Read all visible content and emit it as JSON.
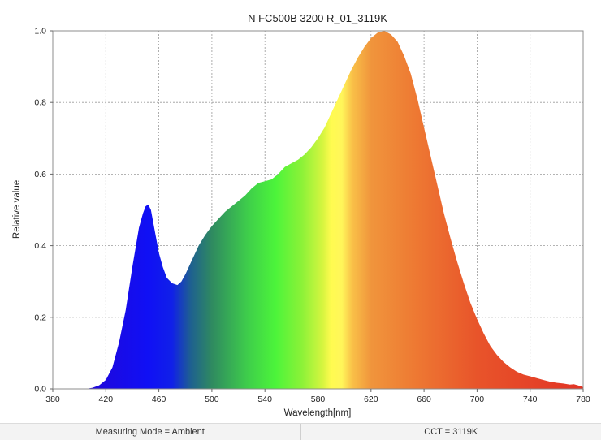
{
  "chart_data": {
    "type": "area",
    "title": "N FC500B 3200 R_01_3119K",
    "xlabel": "Wavelength[nm]",
    "ylabel": "Relative value",
    "xlim": [
      380,
      780
    ],
    "ylim": [
      0,
      1.0
    ],
    "x_ticks": [
      380,
      420,
      460,
      500,
      540,
      580,
      620,
      660,
      700,
      740,
      780
    ],
    "x_tick_labels": [
      "380",
      "420",
      "460",
      "500",
      "540",
      "580",
      "620",
      "660",
      "700",
      "740",
      "780"
    ],
    "y_ticks": [
      0,
      0.2,
      0.4,
      0.6,
      0.8,
      1.0
    ],
    "y_tick_labels": [
      "0.0",
      "0.2",
      "0.4",
      "0.6",
      "0.8",
      "1.0"
    ],
    "grid": "dashed",
    "fill": "visible-spectrum color gradient",
    "x": [
      405,
      410,
      415,
      420,
      425,
      430,
      435,
      440,
      445,
      448,
      450,
      452,
      454,
      456,
      458,
      460,
      463,
      466,
      470,
      474,
      477,
      480,
      485,
      490,
      495,
      500,
      505,
      510,
      515,
      520,
      525,
      530,
      535,
      540,
      545,
      550,
      555,
      560,
      565,
      570,
      575,
      580,
      585,
      590,
      595,
      600,
      605,
      610,
      615,
      620,
      625,
      630,
      635,
      640,
      645,
      650,
      655,
      660,
      665,
      670,
      675,
      680,
      685,
      690,
      695,
      700,
      705,
      710,
      715,
      720,
      725,
      730,
      735,
      740,
      745,
      750,
      755,
      760,
      765,
      770,
      773,
      776,
      780
    ],
    "values": [
      0.0,
      0.003,
      0.01,
      0.025,
      0.06,
      0.13,
      0.22,
      0.34,
      0.45,
      0.49,
      0.51,
      0.515,
      0.5,
      0.46,
      0.42,
      0.38,
      0.34,
      0.31,
      0.295,
      0.29,
      0.3,
      0.32,
      0.36,
      0.4,
      0.43,
      0.455,
      0.475,
      0.495,
      0.51,
      0.525,
      0.54,
      0.56,
      0.575,
      0.58,
      0.585,
      0.6,
      0.62,
      0.63,
      0.64,
      0.655,
      0.675,
      0.7,
      0.73,
      0.77,
      0.81,
      0.85,
      0.89,
      0.925,
      0.955,
      0.98,
      0.995,
      1.0,
      0.99,
      0.97,
      0.93,
      0.88,
      0.81,
      0.73,
      0.65,
      0.57,
      0.49,
      0.42,
      0.355,
      0.295,
      0.24,
      0.195,
      0.155,
      0.12,
      0.095,
      0.075,
      0.06,
      0.048,
      0.04,
      0.035,
      0.03,
      0.025,
      0.02,
      0.017,
      0.015,
      0.012,
      0.013,
      0.01,
      0.005
    ]
  },
  "status": {
    "measuring_mode": "Measuring Mode = Ambient",
    "cct": "CCT = 3119K"
  }
}
